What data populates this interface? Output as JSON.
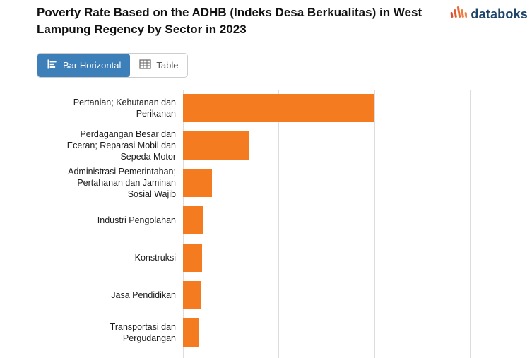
{
  "header": {
    "title": "Poverty Rate Based on the ADHB (Indeks Desa Berkualitas) in West Lampung Regency by Sector in 2023",
    "logo_text": "databoks"
  },
  "toolbar": {
    "bar_horizontal_label": "Bar Horizontal",
    "table_label": "Table"
  },
  "icons": {
    "bar_horizontal_icon": "horizontal-bar-chart-icon",
    "table_icon": "table-grid-icon",
    "logo_icon": "databoks-bars-icon"
  },
  "colors": {
    "bar": "#F47B20",
    "active_button": "#3D7FB8",
    "logo_text": "#1E4569",
    "logo_icon_red": "#DD4B35",
    "logo_icon_orange": "#F08442",
    "gridline": "#DDDDDD"
  },
  "chart_data": {
    "type": "bar",
    "orientation": "horizontal",
    "title": "Poverty Rate Based on the ADHB (Indeks Desa Berkualitas) in West Lampung Regency by Sector in 2023",
    "categories": [
      "Pertanian; Kehutanan dan Perikanan",
      "Perdagangan Besar dan Eceran; Reparasi Mobil dan Sepeda Motor",
      "Administrasi Pemerintahan; Pertahanan dan Jaminan Sosial Wajib",
      "Industri Pengolahan",
      "Konstruksi",
      "Jasa Pendidikan",
      "Transportasi dan Pergudangan"
    ],
    "values": [
      20.0,
      6.9,
      3.0,
      2.1,
      2.0,
      1.9,
      1.7
    ],
    "xlim": [
      0,
      36.5
    ],
    "gridline_values": [
      0,
      10,
      20,
      30
    ],
    "bar_color": "#F47B20",
    "grid": true,
    "legend": false,
    "xlabel": "",
    "ylabel": ""
  }
}
